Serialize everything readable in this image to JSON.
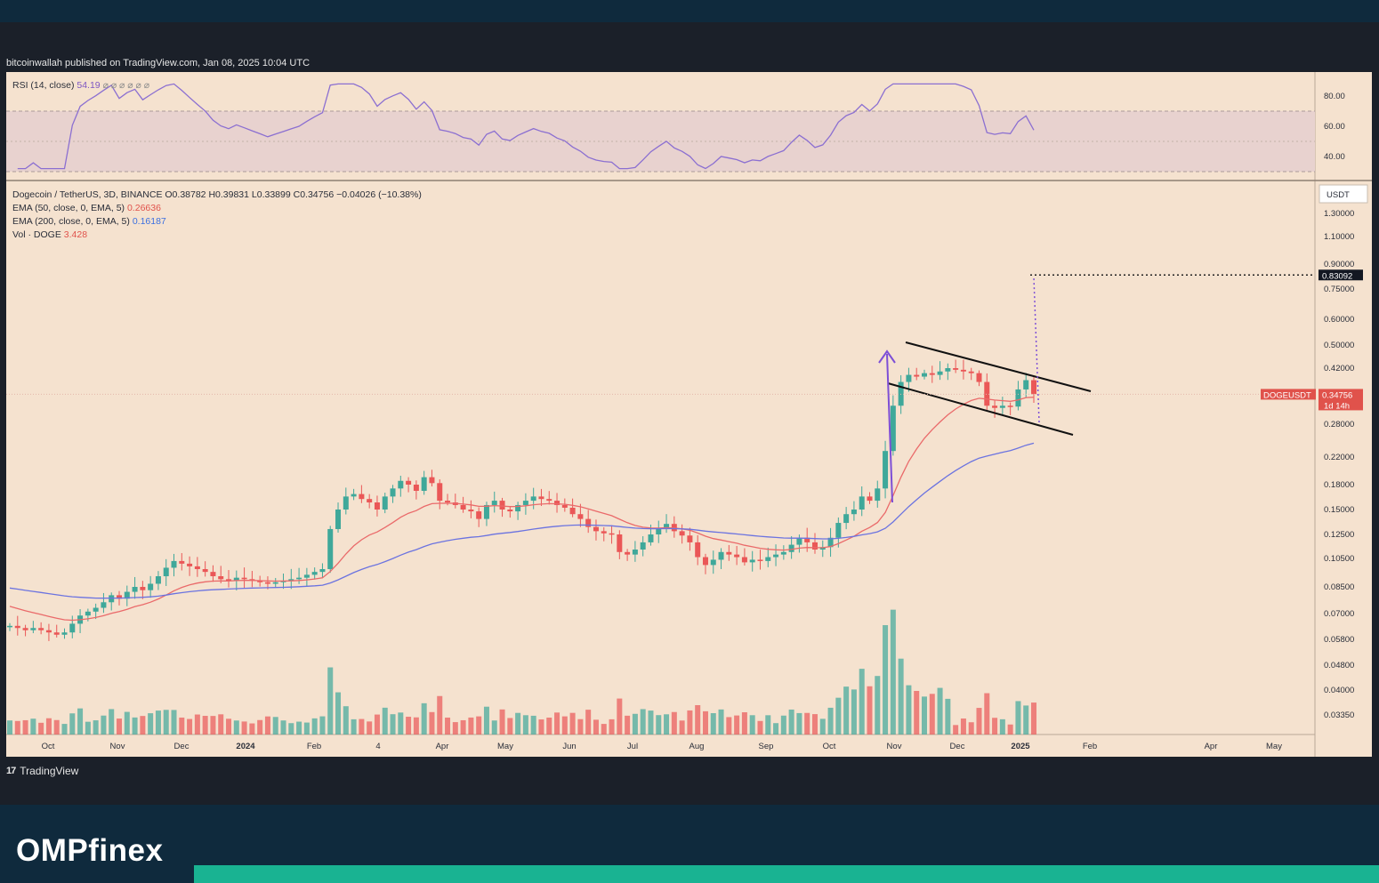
{
  "publisher": "bitcoinwallah published on TradingView.com, Jan 08, 2025 10:04 UTC",
  "footer": {
    "logo": "17",
    "name": "TradingView"
  },
  "brand": {
    "name": "OMPfinex"
  },
  "colors": {
    "page_bg": "#0f2a3d",
    "chart_bg": "#f5e2cf",
    "bull": "#3fa89a",
    "bear": "#ea5757",
    "ema50": "#ea6a6a",
    "ema200": "#6b73e0",
    "rsi": "#8b6fd1",
    "accent_teal": "#19b392"
  },
  "rsi_panel": {
    "title": "RSI (14, close)",
    "value": "54.19",
    "icons": "⌀ ⌀ ⌀ ⌀ ⌀ ⌀",
    "ticks": [
      "80.00",
      "60.00",
      "40.00"
    ]
  },
  "main_panel": {
    "symbol_line": "Dogecoin / TetherUS, 3D, BINANCE",
    "ohlc": {
      "o": "O0.38782",
      "h": "H0.39831",
      "l": "L0.33899",
      "c": "C0.34756",
      "chg": "−0.04026 (−10.38%)"
    },
    "ema50": {
      "label": "EMA (50, close, 0, EMA, 5)",
      "value": "0.26636"
    },
    "ema200": {
      "label": "EMA (200, close, 0, EMA, 5)",
      "value": "0.16187"
    },
    "vol": {
      "label": "Vol · DOGE",
      "value": "3.428"
    },
    "currency": "USDT",
    "price_ticks": [
      "1.30000",
      "1.10000",
      "0.90000",
      "0.75000",
      "0.60000",
      "0.50000",
      "0.42000",
      "0.28000",
      "0.22000",
      "0.18000",
      "0.15000",
      "0.12500",
      "0.10500",
      "0.08500",
      "0.07000",
      "0.05800",
      "0.04800",
      "0.04000",
      "0.03350"
    ],
    "target_label": "0.83092",
    "symbol_tag": "DOGEUSDT",
    "price_tag": "0.34756",
    "countdown": "1d 14h"
  },
  "time_axis": [
    "Oct",
    "Nov",
    "Dec",
    "2024",
    "Feb",
    "4",
    "Apr",
    "May",
    "Jun",
    "Jul",
    "Aug",
    "Sep",
    "Oct",
    "Nov",
    "Dec",
    "2025",
    "Feb",
    "Apr",
    "May"
  ],
  "chart_data": {
    "type": "candlestick",
    "title": "Dogecoin / TetherUS, 3D, BINANCE",
    "close_series": [
      0.064,
      0.063,
      0.062,
      0.063,
      0.062,
      0.061,
      0.06,
      0.061,
      0.065,
      0.069,
      0.071,
      0.073,
      0.076,
      0.08,
      0.078,
      0.082,
      0.085,
      0.083,
      0.087,
      0.092,
      0.098,
      0.103,
      0.101,
      0.099,
      0.097,
      0.095,
      0.092,
      0.09,
      0.089,
      0.091,
      0.09,
      0.089,
      0.088,
      0.087,
      0.088,
      0.089,
      0.09,
      0.091,
      0.093,
      0.095,
      0.097,
      0.13,
      0.15,
      0.165,
      0.168,
      0.162,
      0.158,
      0.15,
      0.165,
      0.175,
      0.185,
      0.18,
      0.172,
      0.19,
      0.182,
      0.16,
      0.158,
      0.155,
      0.15,
      0.148,
      0.14,
      0.155,
      0.16,
      0.15,
      0.148,
      0.155,
      0.16,
      0.165,
      0.162,
      0.16,
      0.155,
      0.152,
      0.145,
      0.14,
      0.132,
      0.128,
      0.126,
      0.125,
      0.11,
      0.108,
      0.112,
      0.118,
      0.125,
      0.13,
      0.135,
      0.128,
      0.124,
      0.118,
      0.106,
      0.1,
      0.104,
      0.11,
      0.108,
      0.106,
      0.102,
      0.104,
      0.103,
      0.106,
      0.108,
      0.11,
      0.116,
      0.122,
      0.118,
      0.112,
      0.114,
      0.122,
      0.136,
      0.145,
      0.15,
      0.165,
      0.16,
      0.175,
      0.23,
      0.32,
      0.38,
      0.4,
      0.395,
      0.405,
      0.4,
      0.41,
      0.42,
      0.415,
      0.41,
      0.405,
      0.38,
      0.32,
      0.315,
      0.32,
      0.318,
      0.36,
      0.385,
      0.348
    ],
    "ema50_end": 0.26636,
    "ema200_end": 0.16187,
    "rsi_latest": 54.19,
    "pattern": "bull flag",
    "target": 0.83092,
    "last_price": 0.34756,
    "ohlc_last": {
      "open": 0.38782,
      "high": 0.39831,
      "low": 0.33899,
      "close": 0.34756,
      "change": -0.04026,
      "change_pct": -10.38
    },
    "y_scale": "log",
    "ylim": [
      0.03,
      1.4
    ],
    "rsi_range": [
      30,
      90
    ]
  }
}
